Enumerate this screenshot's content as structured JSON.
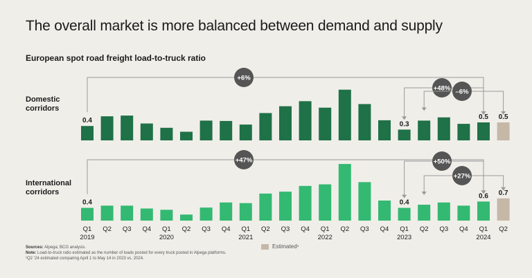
{
  "title": "The overall market is more balanced between demand and supply",
  "subtitle": "European spot road freight load-to-truck ratio",
  "colors": {
    "domestic": "#1f7148",
    "international": "#33b972",
    "estimated": "#c6b8a7",
    "badge": "#555555",
    "connector": "#9a9a9a"
  },
  "chart_data": [
    {
      "type": "bar",
      "name": "Domestic corridors",
      "label_lines": [
        "Domestic",
        "corridors"
      ],
      "categories": [
        "Q1 2019",
        "Q2 2019",
        "Q3 2019",
        "Q4 2019",
        "Q1 2020",
        "Q2 2020",
        "Q3 2020",
        "Q4 2020",
        "Q1 2021",
        "Q2 2021",
        "Q3 2021",
        "Q4 2021",
        "Q1 2022",
        "Q2 2022",
        "Q3 2022",
        "Q4 2022",
        "Q1 2023",
        "Q2 2023",
        "Q3 2023",
        "Q4 2023",
        "Q1 2024",
        "Q2 2024"
      ],
      "values": [
        0.4,
        0.67,
        0.69,
        0.47,
        0.35,
        0.24,
        0.55,
        0.54,
        0.44,
        0.76,
        0.95,
        1.09,
        0.91,
        1.41,
        1.01,
        0.56,
        0.3,
        0.55,
        0.64,
        0.46,
        0.5,
        0.5
      ],
      "estimated": [
        false,
        false,
        false,
        false,
        false,
        false,
        false,
        false,
        false,
        false,
        false,
        false,
        false,
        false,
        false,
        false,
        false,
        false,
        false,
        false,
        false,
        true
      ],
      "value_labels": [
        {
          "index": 0,
          "text": "0.4"
        },
        {
          "index": 16,
          "text": "0.3"
        },
        {
          "index": 20,
          "text": "0.5"
        },
        {
          "index": 21,
          "text": "0.5"
        }
      ],
      "annotations": [
        {
          "text": "+6%",
          "from": 0,
          "to": 20
        },
        {
          "text": "+48%",
          "from": 16,
          "to": 20
        },
        {
          "text": "–6%",
          "from": 17,
          "to": 21
        }
      ]
    },
    {
      "type": "bar",
      "name": "International corridors",
      "label_lines": [
        "International",
        "corridors"
      ],
      "categories": [
        "Q1 2019",
        "Q2 2019",
        "Q3 2019",
        "Q4 2019",
        "Q1 2020",
        "Q2 2020",
        "Q3 2020",
        "Q4 2020",
        "Q1 2021",
        "Q2 2021",
        "Q3 2021",
        "Q4 2021",
        "Q1 2022",
        "Q2 2022",
        "Q3 2022",
        "Q4 2022",
        "Q1 2023",
        "Q2 2023",
        "Q3 2023",
        "Q4 2023",
        "Q1 2024",
        "Q2 2024"
      ],
      "values": [
        0.4,
        0.47,
        0.47,
        0.38,
        0.34,
        0.19,
        0.41,
        0.57,
        0.55,
        0.85,
        0.91,
        1.09,
        1.14,
        1.78,
        1.21,
        0.63,
        0.4,
        0.5,
        0.57,
        0.47,
        0.6,
        0.7
      ],
      "estimated": [
        false,
        false,
        false,
        false,
        false,
        false,
        false,
        false,
        false,
        false,
        false,
        false,
        false,
        false,
        false,
        false,
        false,
        false,
        false,
        false,
        false,
        true
      ],
      "value_labels": [
        {
          "index": 0,
          "text": "0.4"
        },
        {
          "index": 16,
          "text": "0.4"
        },
        {
          "index": 20,
          "text": "0.6"
        },
        {
          "index": 21,
          "text": "0.7"
        }
      ],
      "annotations": [
        {
          "text": "+47%",
          "from": 0,
          "to": 20
        },
        {
          "text": "+50%",
          "from": 16,
          "to": 20
        },
        {
          "text": "+27%",
          "from": 17,
          "to": 21
        }
      ]
    }
  ],
  "x_axis": {
    "quarters": [
      "Q1",
      "Q2",
      "Q3",
      "Q4",
      "Q1",
      "Q2",
      "Q3",
      "Q4",
      "Q1",
      "Q2",
      "Q3",
      "Q4",
      "Q1",
      "Q2",
      "Q3",
      "Q4",
      "Q1",
      "Q2",
      "Q3",
      "Q4",
      "Q1",
      "Q2"
    ],
    "years": [
      {
        "index": 0,
        "text": "2019"
      },
      {
        "index": 4,
        "text": "2020"
      },
      {
        "index": 8,
        "text": "2021"
      },
      {
        "index": 12,
        "text": "2022"
      },
      {
        "index": 16,
        "text": "2023"
      },
      {
        "index": 20,
        "text": "2024"
      }
    ]
  },
  "legend": {
    "estimated_label": "Estimated¹"
  },
  "footnotes": {
    "sources_label": "Sources:",
    "sources_text": " Alpega; BCG analysis.",
    "note_label": "Note:",
    "note_text": " Load-to-truck ratio estimated as the number of loads posted for every truck posted in Alpega platforms.",
    "footnote_1": "¹Q2 ’24 estimated comparing April 1 to May 14 in 2023 vs. 2024."
  }
}
